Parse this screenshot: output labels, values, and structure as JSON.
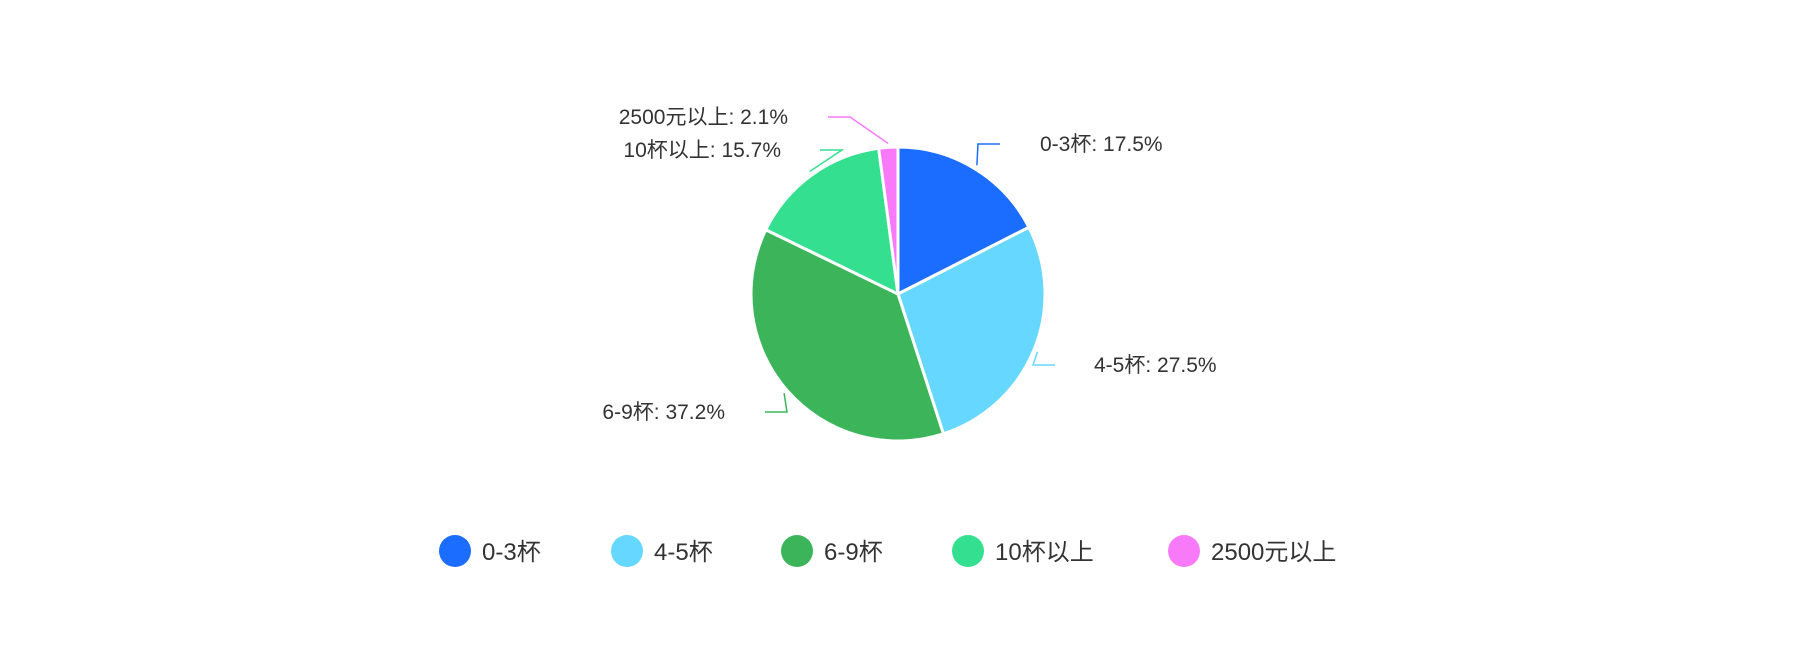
{
  "chart_data": {
    "type": "pie",
    "title": "",
    "legend_position": "bottom",
    "slices": [
      {
        "label": "0-3杯",
        "value": 17.5,
        "display": "0-3杯: 17.5%",
        "color": "#1a6dff"
      },
      {
        "label": "4-5杯",
        "value": 27.5,
        "display": "4-5杯: 27.5%",
        "color": "#66d7ff"
      },
      {
        "label": "6-9杯",
        "value": 37.2,
        "display": "6-9杯: 37.2%",
        "color": "#3cb55a"
      },
      {
        "label": "10杯以上",
        "value": 15.7,
        "display": "10杯以上: 15.7%",
        "color": "#34df8f"
      },
      {
        "label": "2500元以上",
        "value": 2.1,
        "display": "2500元以上: 2.1%",
        "color": "#f87af8"
      }
    ]
  }
}
